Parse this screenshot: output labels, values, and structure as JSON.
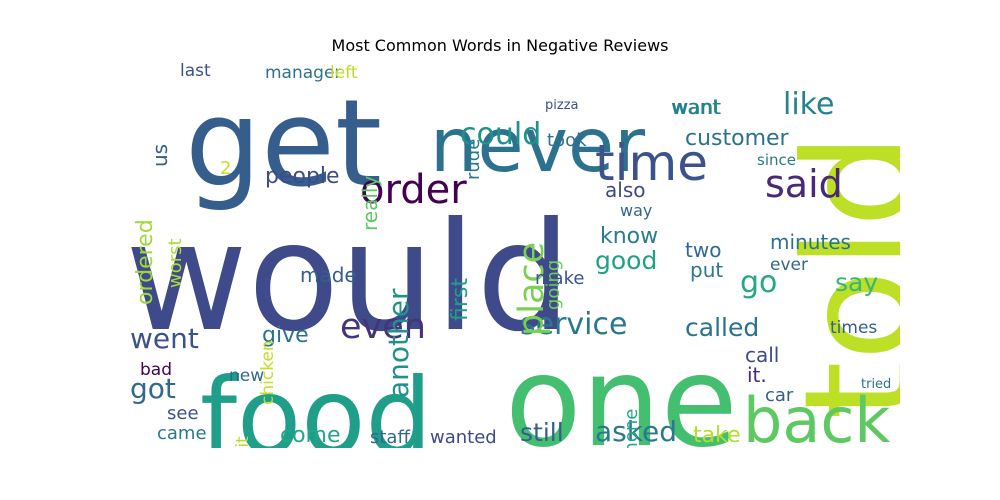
{
  "chart_data": {
    "type": "wordcloud",
    "title": "Most Common Words in Negative Reviews",
    "words": [
      {
        "text": "would",
        "color": "#3e4a89"
      },
      {
        "text": "get",
        "color": "#355e8d"
      },
      {
        "text": "never",
        "color": "#2c728e"
      },
      {
        "text": "food",
        "color": "#1f9e89"
      },
      {
        "text": "one",
        "color": "#44bf70"
      },
      {
        "text": "told",
        "color": "#bddf26"
      },
      {
        "text": "back",
        "color": "#5ec962"
      },
      {
        "text": "time",
        "color": "#3b528b"
      },
      {
        "text": "order",
        "color": "#440154"
      },
      {
        "text": "said",
        "color": "#482878"
      },
      {
        "text": "like",
        "color": "#26828e"
      },
      {
        "text": "could",
        "color": "#21918c"
      },
      {
        "text": "even",
        "color": "#46337e"
      },
      {
        "text": "service",
        "color": "#2a788e"
      },
      {
        "text": "called",
        "color": "#2c728e"
      },
      {
        "text": "customer",
        "color": "#2c728e"
      },
      {
        "text": "place",
        "color": "#7ad151"
      },
      {
        "text": "got",
        "color": "#31688e"
      },
      {
        "text": "went",
        "color": "#3b528b"
      },
      {
        "text": "asked",
        "color": "#2a788e"
      },
      {
        "text": "still",
        "color": "#355e8d"
      },
      {
        "text": "take",
        "color": "#b5de2b"
      },
      {
        "text": "people",
        "color": "#3e4a89"
      },
      {
        "text": "ordered",
        "color": "#9fda3a"
      },
      {
        "text": "go",
        "color": "#22a884"
      },
      {
        "text": "say",
        "color": "#35b779"
      },
      {
        "text": "minutes",
        "color": "#2c728e"
      },
      {
        "text": "want",
        "color": "#26828e"
      },
      {
        "text": "good",
        "color": "#1fa187"
      },
      {
        "text": "know",
        "color": "#287c8e"
      },
      {
        "text": "two",
        "color": "#31688e"
      },
      {
        "text": "put",
        "color": "#2a788e"
      },
      {
        "text": "make",
        "color": "#3b528b"
      },
      {
        "text": "also",
        "color": "#3e4a89"
      },
      {
        "text": "going",
        "color": "#6ece58"
      },
      {
        "text": "first",
        "color": "#1f9e89"
      },
      {
        "text": "another",
        "color": "#21918c"
      },
      {
        "text": "made",
        "color": "#355e8d"
      },
      {
        "text": "give",
        "color": "#2c728e"
      },
      {
        "text": "come",
        "color": "#22a884"
      },
      {
        "text": "wanted",
        "color": "#3e4a89"
      },
      {
        "text": "staff",
        "color": "#31688e"
      },
      {
        "text": "came",
        "color": "#2a788e"
      },
      {
        "text": "see",
        "color": "#3b528b"
      },
      {
        "text": "bad",
        "color": "#440154"
      },
      {
        "text": "new",
        "color": "#31688e"
      },
      {
        "text": "last",
        "color": "#3b528b"
      },
      {
        "text": "us",
        "color": "#355e8d"
      },
      {
        "text": "manager",
        "color": "#2c728e"
      },
      {
        "text": "left",
        "color": "#bddf26"
      },
      {
        "text": "worst",
        "color": "#aadc32"
      },
      {
        "text": "really",
        "color": "#5ec962"
      },
      {
        "text": "rude",
        "color": "#2a788e"
      },
      {
        "text": "took",
        "color": "#2c728e"
      },
      {
        "text": "call",
        "color": "#3e4a89"
      },
      {
        "text": "it.",
        "color": "#472c7a"
      },
      {
        "text": "car",
        "color": "#355e8d"
      },
      {
        "text": "times",
        "color": "#355e8d"
      },
      {
        "text": "ever",
        "color": "#31688e"
      },
      {
        "text": "wait",
        "color": "#b5de2b"
      },
      {
        "text": "chicken",
        "color": "#c2df23"
      },
      {
        "text": "since",
        "color": "#2a788e"
      },
      {
        "text": "way",
        "color": "#31688e"
      },
      {
        "text": "phone",
        "color": "#22a884"
      },
      {
        "text": "tried",
        "color": "#2c728e"
      },
      {
        "text": "2",
        "color": "#c8e020"
      },
      {
        "text": "pizza",
        "color": "#3b528b"
      },
      {
        "text": "want",
        "color": "#26828e"
      }
    ]
  }
}
